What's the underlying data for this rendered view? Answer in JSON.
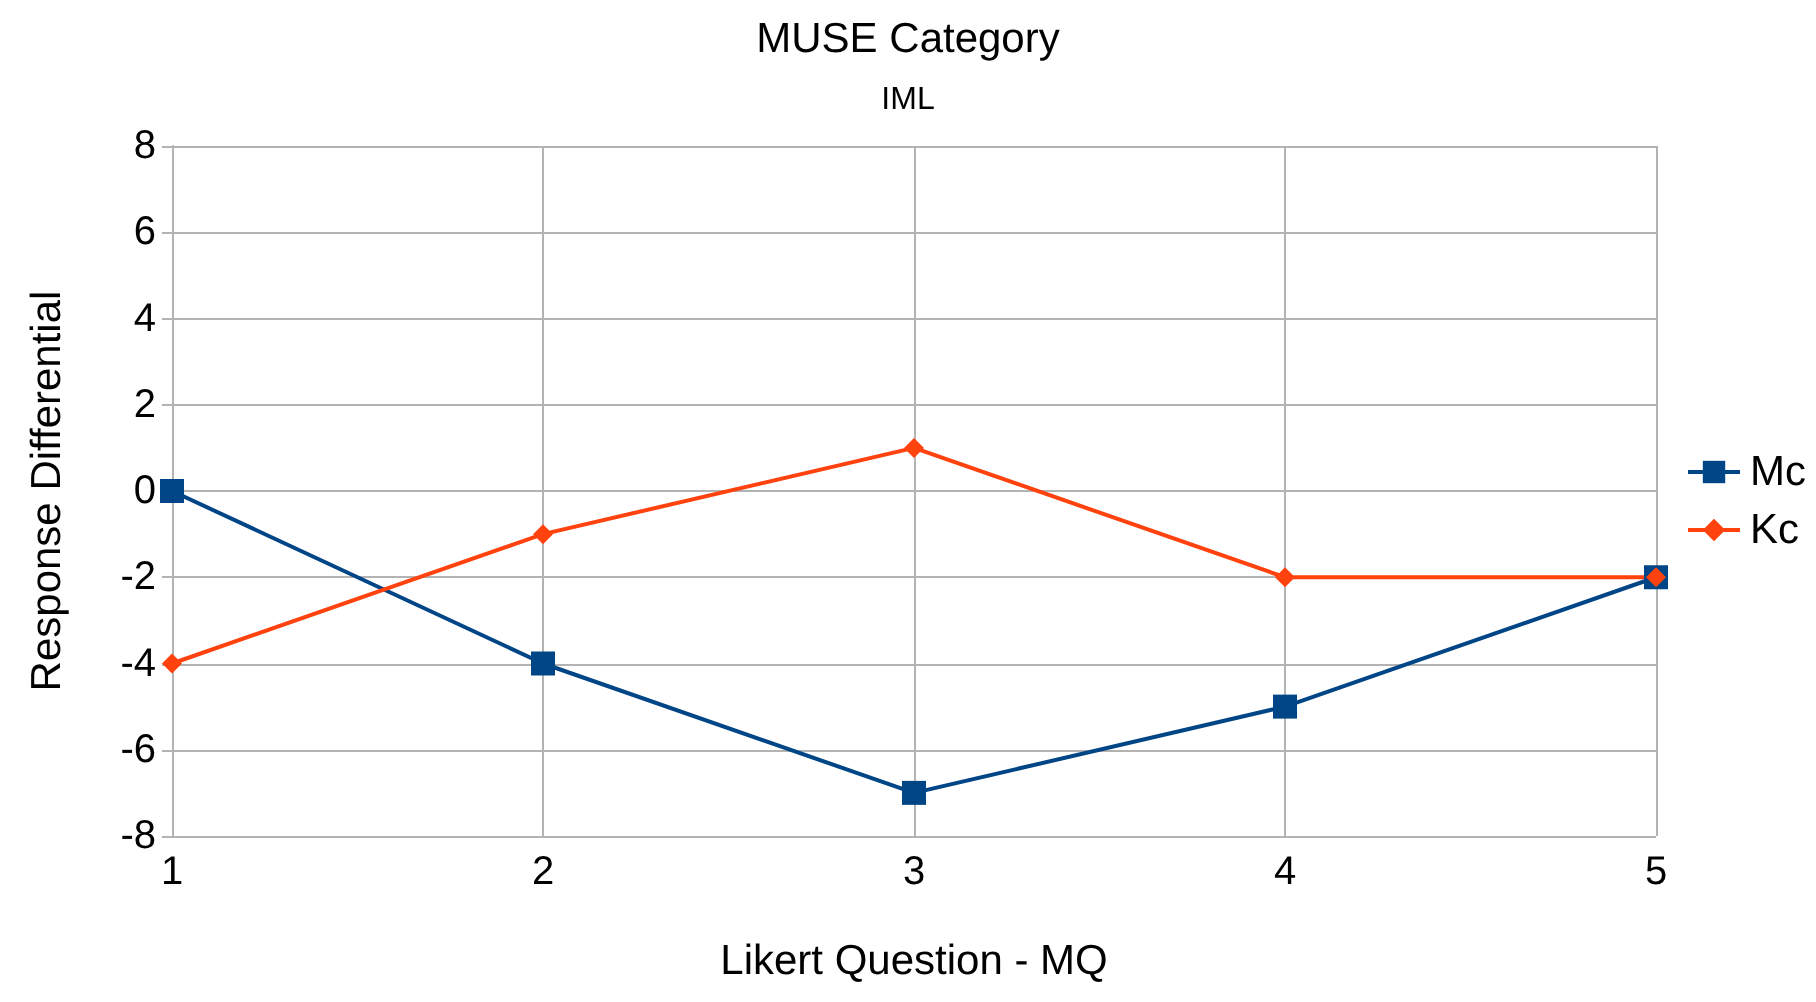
{
  "chart_data": {
    "type": "line",
    "title": "MUSE Category",
    "subtitle": "IML",
    "xlabel": "Likert Question - MQ",
    "ylabel": "Response Differential",
    "x": [
      1,
      2,
      3,
      4,
      5
    ],
    "xlim": [
      1,
      5
    ],
    "xticks": [
      1,
      2,
      3,
      4,
      5
    ],
    "ylim": [
      -8,
      8
    ],
    "yticks": [
      -8,
      -6,
      -4,
      -2,
      0,
      2,
      4,
      6,
      8
    ],
    "grid": true,
    "legend": "right",
    "line_style": "solid",
    "series": [
      {
        "name": "Mc",
        "color": "#004586",
        "marker": "square",
        "values": [
          0,
          -4,
          -7,
          -5,
          -2
        ]
      },
      {
        "name": "Kc",
        "color": "#ff420e",
        "marker": "diamond",
        "values": [
          -4,
          -1,
          1,
          -2,
          -2
        ]
      }
    ]
  }
}
